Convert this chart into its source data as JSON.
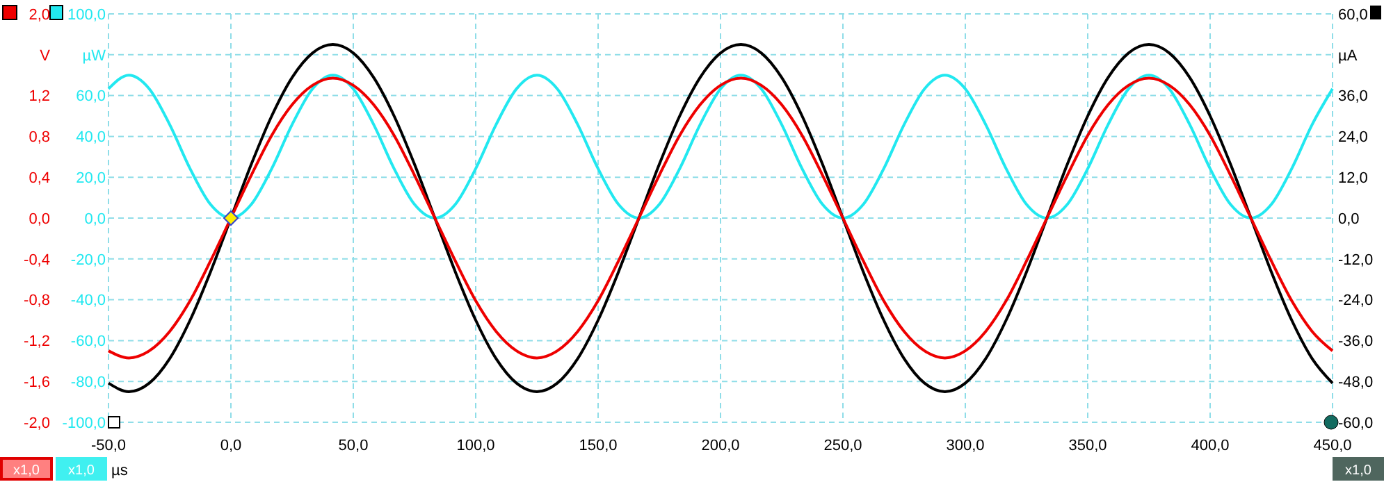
{
  "chart_data": {
    "type": "line",
    "xlabel": "µs",
    "ylabel": "V",
    "y2label": "µA",
    "y3label": "µW",
    "x": [
      -50,
      -41.67,
      -33.33,
      -25,
      -16.67,
      -8.33,
      0,
      8.33,
      16.67,
      25,
      33.33,
      41.67,
      50,
      58.33,
      66.67,
      75,
      83.33,
      91.67,
      100,
      108.33,
      116.67,
      125,
      133.33,
      141.67,
      150,
      158.33,
      166.67,
      175,
      183.33,
      191.67,
      200,
      208.33,
      216.67,
      225,
      233.33,
      241.67,
      250,
      258.33,
      266.67,
      275,
      283.33,
      291.67,
      300,
      308.33,
      316.67,
      325,
      333.33,
      341.67,
      350,
      358.33,
      366.67,
      375,
      383.33,
      391.67,
      400,
      408.33,
      416.67,
      425,
      433.33,
      441.67,
      450
    ],
    "series": [
      {
        "color": "#22e8f0",
        "axis": "y3",
        "values": [
          63.3,
          70,
          63.3,
          45.8,
          24.2,
          6.7,
          0,
          6.7,
          24.2,
          45.8,
          63.3,
          70,
          63.3,
          45.8,
          24.2,
          6.7,
          0,
          6.7,
          24.2,
          45.8,
          63.3,
          70,
          63.3,
          45.8,
          24.2,
          6.7,
          0,
          6.7,
          24.2,
          45.8,
          63.3,
          70,
          63.3,
          45.8,
          24.2,
          6.7,
          0,
          6.7,
          24.2,
          45.8,
          63.3,
          70,
          63.3,
          45.8,
          24.2,
          6.7,
          0,
          6.7,
          24.2,
          45.8,
          63.3,
          70,
          63.3,
          45.8,
          24.2,
          6.7,
          0,
          6.7,
          24.2,
          45.8,
          63.3
        ]
      },
      {
        "color": "#000000",
        "axis": "y2",
        "values": [
          -48.5,
          -51,
          -48.5,
          -41.3,
          -30,
          -15.8,
          0,
          15.8,
          30,
          41.3,
          48.5,
          51,
          48.5,
          41.3,
          30,
          15.8,
          0,
          -15.8,
          -30,
          -41.3,
          -48.5,
          -51,
          -48.5,
          -41.3,
          -30,
          -15.8,
          0,
          15.8,
          30,
          41.3,
          48.5,
          51,
          48.5,
          41.3,
          30,
          15.8,
          0,
          -15.8,
          -30,
          -41.3,
          -48.5,
          -51,
          -48.5,
          -41.3,
          -30,
          -15.8,
          0,
          15.8,
          30,
          41.3,
          48.5,
          51,
          48.5,
          41.3,
          30,
          15.8,
          0,
          -15.8,
          -30,
          -41.3,
          -48.5
        ]
      },
      {
        "color": "#ee0000",
        "axis": "y",
        "values": [
          -1.3,
          -1.37,
          -1.3,
          -1.11,
          -0.81,
          -0.42,
          0,
          0.42,
          0.81,
          1.11,
          1.3,
          1.37,
          1.3,
          1.11,
          0.81,
          0.42,
          0,
          -0.42,
          -0.81,
          -1.11,
          -1.3,
          -1.37,
          -1.3,
          -1.11,
          -0.81,
          -0.42,
          0,
          0.42,
          0.81,
          1.11,
          1.3,
          1.37,
          1.3,
          1.11,
          0.81,
          0.42,
          0,
          -0.42,
          -0.81,
          -1.11,
          -1.3,
          -1.37,
          -1.3,
          -1.11,
          -0.81,
          -0.42,
          0,
          0.42,
          0.81,
          1.11,
          1.3,
          1.37,
          1.3,
          1.11,
          0.81,
          0.42,
          0,
          -0.42,
          -0.81,
          -1.11,
          -1.3
        ]
      }
    ],
    "xlim": [
      -50,
      450
    ],
    "xticks": [
      {
        "value": -50,
        "label": "-50,0"
      },
      {
        "value": 0,
        "label": "0,0"
      },
      {
        "value": 50,
        "label": "50,0"
      },
      {
        "value": 100,
        "label": "100,0"
      },
      {
        "value": 150,
        "label": "150,0"
      },
      {
        "value": 200,
        "label": "200,0"
      },
      {
        "value": 250,
        "label": "250,0"
      },
      {
        "value": 300,
        "label": "300,0"
      },
      {
        "value": 350,
        "label": "350,0"
      },
      {
        "value": 400,
        "label": "400,0"
      },
      {
        "value": 450,
        "label": "450,0"
      }
    ],
    "ylim": [
      -2,
      2
    ],
    "yticks": [
      {
        "value": -2,
        "label": "-2,0"
      },
      {
        "value": -1.6,
        "label": "-1,6"
      },
      {
        "value": -1.2,
        "label": "-1,2"
      },
      {
        "value": -0.8,
        "label": "-0,8"
      },
      {
        "value": -0.4,
        "label": "-0,4"
      },
      {
        "value": 0,
        "label": "0,0"
      },
      {
        "value": 0.4,
        "label": "0,4"
      },
      {
        "value": 0.8,
        "label": "0,8"
      },
      {
        "value": 1.2,
        "label": "1,2"
      },
      {
        "value": 1.6,
        "label": null
      },
      {
        "value": 2,
        "label": "2,0"
      }
    ],
    "y3lim": [
      -100,
      100
    ],
    "y3ticks": [
      {
        "value": -100,
        "label": "-100,0"
      },
      {
        "value": -80,
        "label": "-80,0"
      },
      {
        "value": -60,
        "label": "-60,0"
      },
      {
        "value": -40,
        "label": "-40,0"
      },
      {
        "value": -20,
        "label": "-20,0"
      },
      {
        "value": 0,
        "label": "0,0"
      },
      {
        "value": 20,
        "label": "20,0"
      },
      {
        "value": 40,
        "label": "40,0"
      },
      {
        "value": 60,
        "label": "60,0"
      },
      {
        "value": 80,
        "label": null
      },
      {
        "value": 100,
        "label": "100,0"
      }
    ],
    "y2lim": [
      -60,
      60
    ],
    "y2ticks": [
      {
        "value": -60,
        "label": "-60,0"
      },
      {
        "value": -48,
        "label": "-48,0"
      },
      {
        "value": -36,
        "label": "-36,0"
      },
      {
        "value": -24,
        "label": "-24,0"
      },
      {
        "value": -12,
        "label": "-12,0"
      },
      {
        "value": 0,
        "label": "0,0"
      },
      {
        "value": 12,
        "label": "12,0"
      },
      {
        "value": 24,
        "label": "24,0"
      },
      {
        "value": 36,
        "label": "36,0"
      },
      {
        "value": 48,
        "label": null
      },
      {
        "value": 60,
        "label": "60,0"
      }
    ],
    "grid": true,
    "marker": "none",
    "line_style": "solid",
    "annotations": [
      "x1,0",
      "x1,0",
      "x1,0"
    ]
  }
}
